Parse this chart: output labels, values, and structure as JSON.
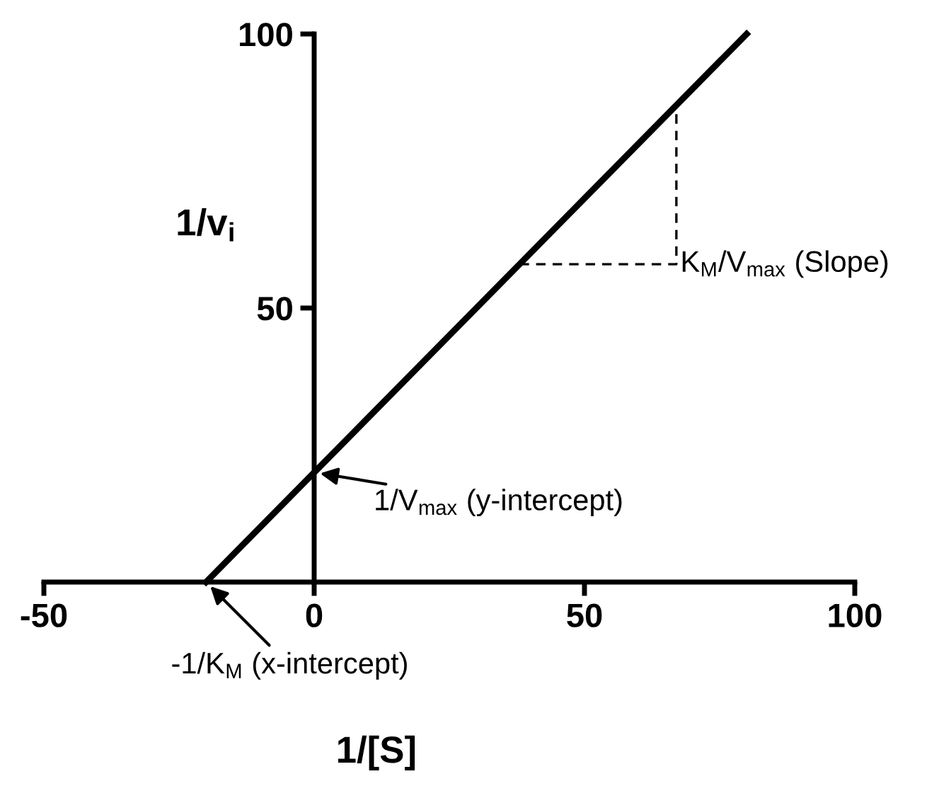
{
  "chart_data": {
    "type": "line",
    "xlabel": "1/[S]",
    "ylabel": "1/v$_{i}$",
    "xlim": [
      -50,
      100
    ],
    "ylim": [
      0,
      100
    ],
    "xticks": [
      -50,
      0,
      50,
      100
    ],
    "yticks": [
      50,
      100
    ],
    "series": [
      {
        "color": "#000000",
        "line_style": "solid",
        "x": [
          -20,
          80
        ],
        "values": [
          0,
          100
        ]
      },
      {
        "color": "#000000",
        "line_style": "dashed",
        "x": [
          38,
          67,
          67
        ],
        "values": [
          58,
          58,
          87
        ]
      }
    ],
    "annotations": [
      {
        "text": "1/V$_{max}$ (y-intercept)",
        "x": 0,
        "y": 20
      },
      {
        "text": "-1/K$_{M}$ (x-intercept)",
        "x": -20,
        "y": 0
      },
      {
        "text": "K$_{M}$/V$_{max}$ (Slope)",
        "x": 67,
        "y": 58
      }
    ]
  }
}
